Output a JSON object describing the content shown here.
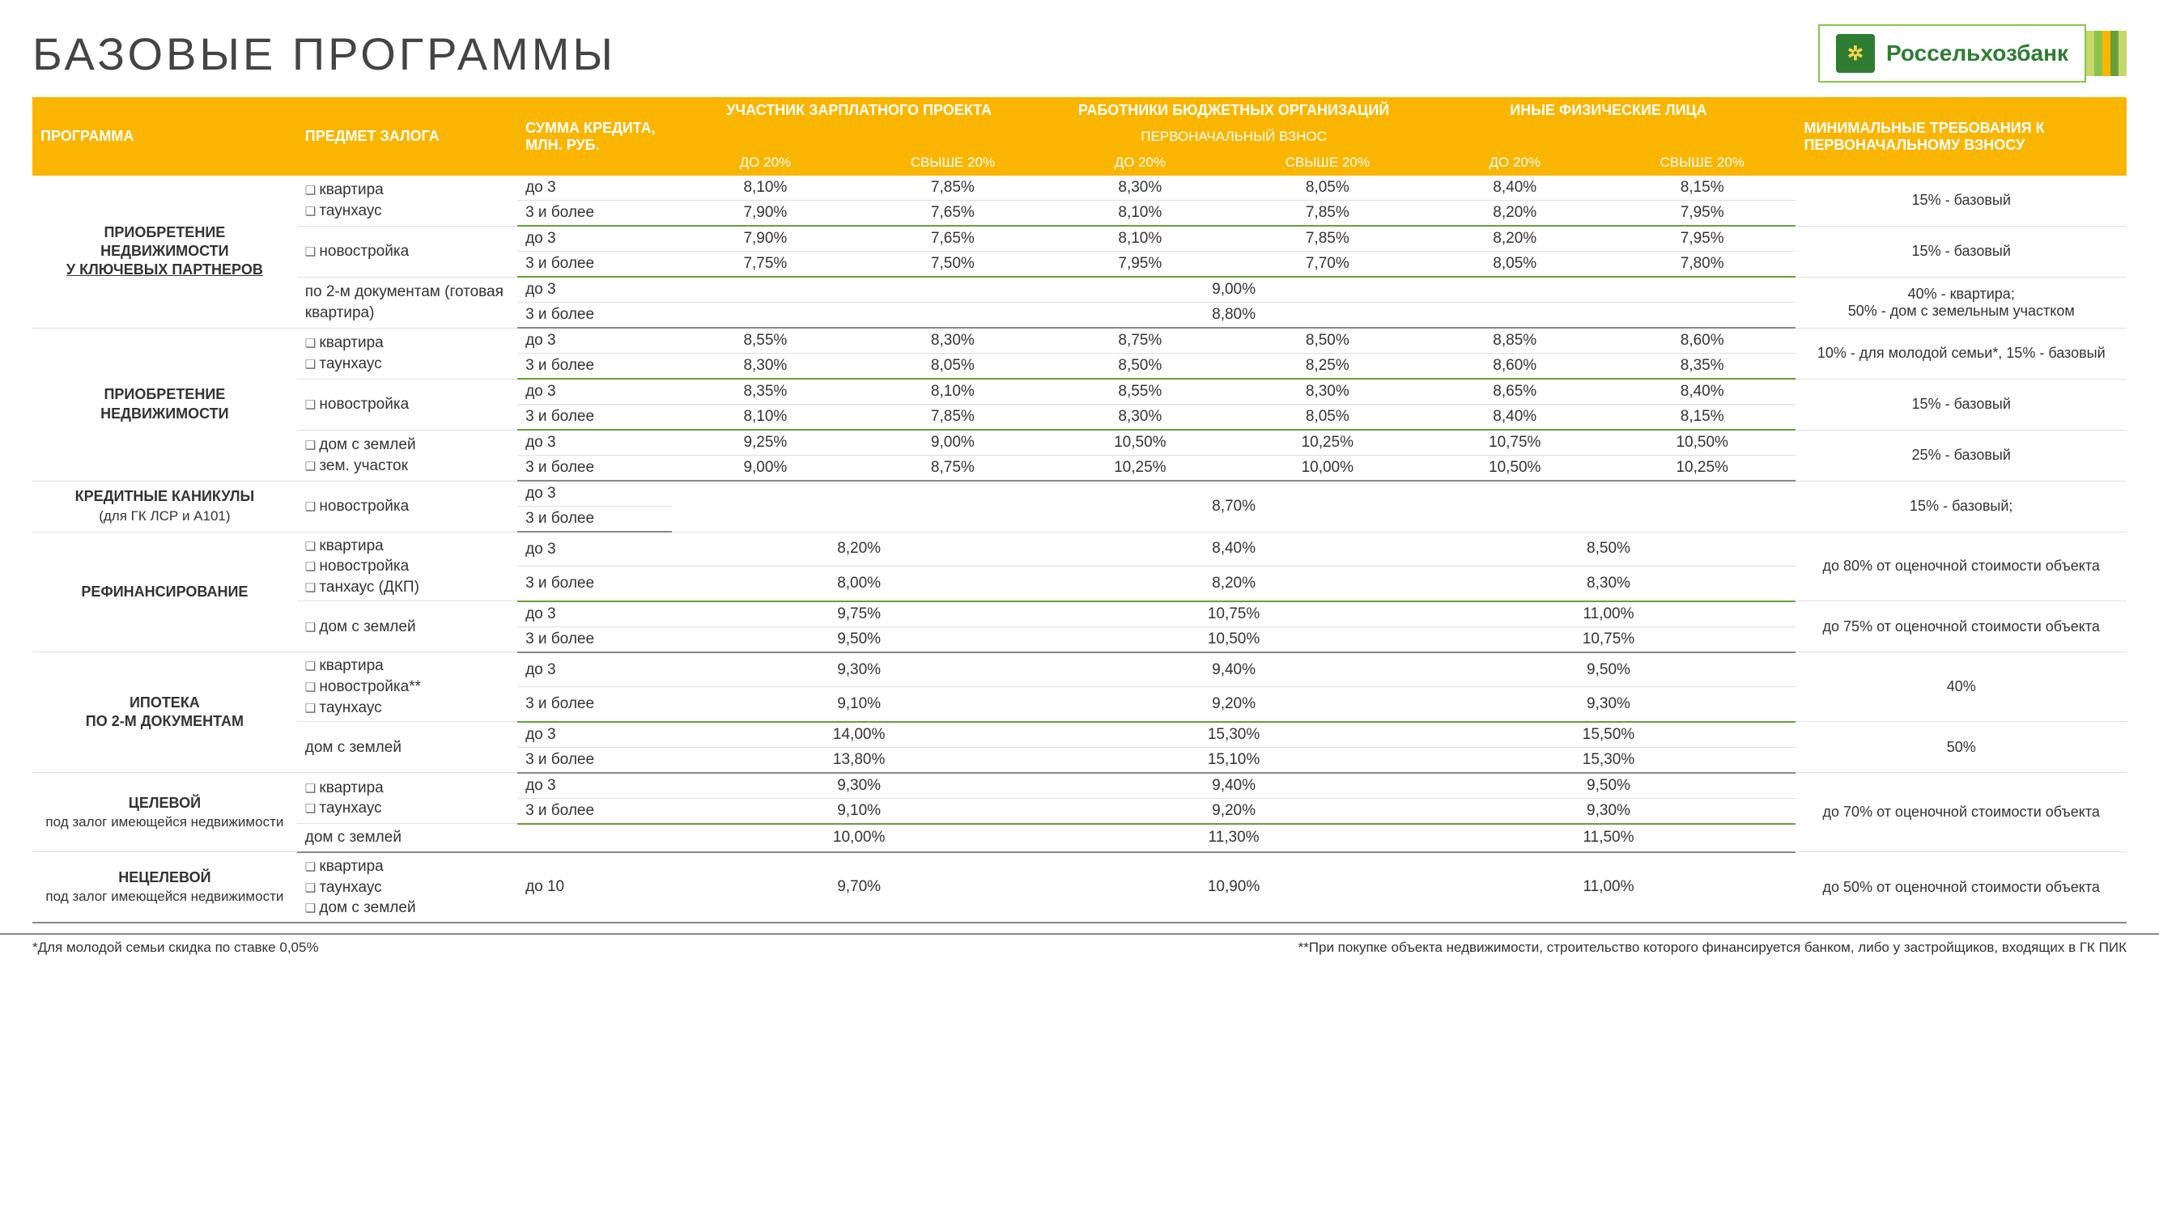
{
  "title": "БАЗОВЫЕ ПРОГРАММЫ",
  "bank": "Россельхозбанк",
  "bar_colors": [
    "#c5d86d",
    "#8bc34a",
    "#f9b500",
    "#689f38",
    "#c5d86d"
  ],
  "header": {
    "c1": "ПРОГРАММА",
    "c2": "ПРЕДМЕТ ЗАЛОГА",
    "c3": "СУММА КРЕДИТА, МЛН. РУБ.",
    "g1": "УЧАСТНИК ЗАРПЛАТНОГО ПРОЕКТА",
    "g2": "РАБОТНИКИ БЮДЖЕТНЫХ ОРГАНИЗАЦИЙ",
    "g3": "ИНЫЕ ФИЗИЧЕСКИЕ ЛИЦА",
    "mid": "ПЕРВОНАЧАЛЬНЫЙ ВЗНОС",
    "s1": "ДО 20%",
    "s2": "СВЫШЕ 20%",
    "c10": "МИНИМАЛЬНЫЕ ТРЕБОВАНИЯ К ПЕРВОНАЧАЛЬНОМУ ВЗНОСУ"
  },
  "amt": {
    "a": "до 3",
    "b": "3 и более",
    "c": "до 10"
  },
  "subj": {
    "kvartira": "квартира",
    "taunhaus": "таунхаус",
    "novo": "новостройка",
    "novo2": "новостройка**",
    "docs": "по 2-м документам (готовая квартира)",
    "dom_zem": "дом с землей",
    "zem_uch": "зем. участок",
    "tanhaus_dkp": "танхаус (ДКП)"
  },
  "prog": {
    "p1a": "ПРИОБРЕТЕНИЕ НЕДВИЖИМОСТИ",
    "p1b": "У КЛЮЧЕВЫХ ПАРТНЕРОВ",
    "p2": "ПРИОБРЕТЕНИЕ НЕДВИЖИМОСТИ",
    "p3a": "КРЕДИТНЫЕ КАНИКУЛЫ",
    "p3b": "(для ГК ЛСР и А101)",
    "p4": "РЕФИНАНСИРОВАНИЕ",
    "p5a": "ИПОТЕКА",
    "p5b": "ПО 2-М ДОКУМЕНТАМ",
    "p6a": "ЦЕЛЕВОЙ",
    "p6b": "под залог имеющейся недвижимости",
    "p7a": "НЕЦЕЛЕВОЙ",
    "p7b": "под залог имеющейся недвижимости"
  },
  "req": {
    "r15": "15% - базовый",
    "r15s": "15% - базовый;",
    "r40_50": "40% - квартира;\n50% - дом с земельным участком",
    "r10_15": "10% - для молодой семьи*, 15% - базовый",
    "r25": "25% - базовый",
    "r80": "до 80% от оценочной стоимости объекта",
    "r75": "до 75% от оценочной стоимости объекта",
    "r40": "40%",
    "r50": "50%",
    "r70": "до 70% от оценочной стоимости объекта",
    "r50o": "до 50% от оценочной стоимости объекта"
  },
  "v": {
    "p1r1": [
      "8,10%",
      "7,85%",
      "8,30%",
      "8,05%",
      "8,40%",
      "8,15%"
    ],
    "p1r2": [
      "7,90%",
      "7,65%",
      "8,10%",
      "7,85%",
      "8,20%",
      "7,95%"
    ],
    "p1r3": [
      "7,90%",
      "7,65%",
      "8,10%",
      "7,85%",
      "8,20%",
      "7,95%"
    ],
    "p1r4": [
      "7,75%",
      "7,50%",
      "7,95%",
      "7,70%",
      "8,05%",
      "7,80%"
    ],
    "p1r5": "9,00%",
    "p1r6": "8,80%",
    "p2r1": [
      "8,55%",
      "8,30%",
      "8,75%",
      "8,50%",
      "8,85%",
      "8,60%"
    ],
    "p2r2": [
      "8,30%",
      "8,05%",
      "8,50%",
      "8,25%",
      "8,60%",
      "8,35%"
    ],
    "p2r3": [
      "8,35%",
      "8,10%",
      "8,55%",
      "8,30%",
      "8,65%",
      "8,40%"
    ],
    "p2r4": [
      "8,10%",
      "7,85%",
      "8,30%",
      "8,05%",
      "8,40%",
      "8,15%"
    ],
    "p2r5": [
      "9,25%",
      "9,00%",
      "10,50%",
      "10,25%",
      "10,75%",
      "10,50%"
    ],
    "p2r6": [
      "9,00%",
      "8,75%",
      "10,25%",
      "10,00%",
      "10,50%",
      "10,25%"
    ],
    "p3": "8,70%",
    "p4r1": [
      "8,20%",
      "8,40%",
      "8,50%"
    ],
    "p4r2": [
      "8,00%",
      "8,20%",
      "8,30%"
    ],
    "p4r3": [
      "9,75%",
      "10,75%",
      "11,00%"
    ],
    "p4r4": [
      "9,50%",
      "10,50%",
      "10,75%"
    ],
    "p5r1": [
      "9,30%",
      "9,40%",
      "9,50%"
    ],
    "p5r2": [
      "9,10%",
      "9,20%",
      "9,30%"
    ],
    "p5r3": [
      "14,00%",
      "15,30%",
      "15,50%"
    ],
    "p5r4": [
      "13,80%",
      "15,10%",
      "15,30%"
    ],
    "p6r1": [
      "9,30%",
      "9,40%",
      "9,50%"
    ],
    "p6r2": [
      "9,10%",
      "9,20%",
      "9,30%"
    ],
    "p6r3": [
      "10,00%",
      "11,30%",
      "11,50%"
    ],
    "p7": [
      "9,70%",
      "10,90%",
      "11,00%"
    ]
  },
  "foot": {
    "left": "*Для молодой семьи скидка по ставке 0,05%",
    "right": "**При покупке объекта недвижимости, строительство которого финансируется банком, либо у застройщиков, входящих в ГК ПИК"
  }
}
